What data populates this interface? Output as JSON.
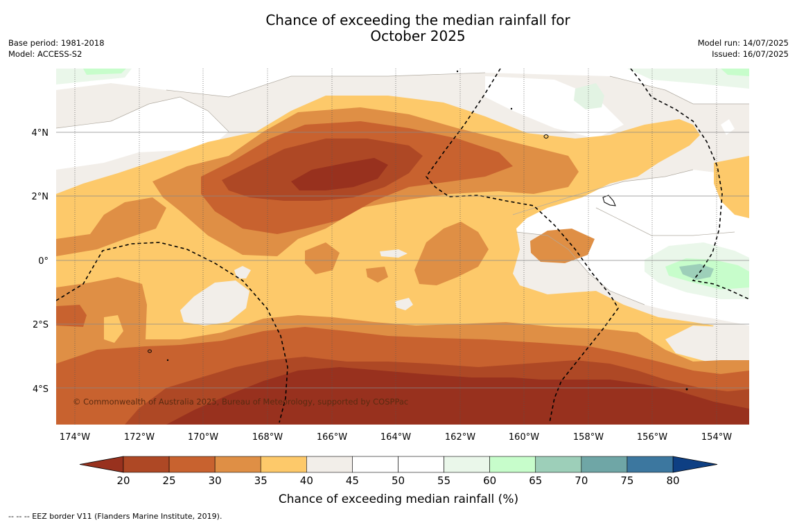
{
  "title_line1": "Chance of exceeding the median rainfall for",
  "title_line2": "October 2025",
  "base_period": "Base period: 1981-2018",
  "model": "Model: ACCESS-S2",
  "model_run": "Model run: 14/07/2025",
  "issued": "Issued: 16/07/2025",
  "copyright": "© Commonwealth of Australia 2025, Bureau of Meteorology, supported by COSPPac",
  "lon_labels": [
    "174°W",
    "172°W",
    "170°W",
    "168°W",
    "166°W",
    "164°W",
    "162°W",
    "160°W",
    "158°W",
    "156°W",
    "154°W"
  ],
  "lat_labels": [
    "4°N",
    "2°N",
    "0°",
    "2°S",
    "4°S"
  ],
  "colorbar": {
    "ticks": [
      "20",
      "25",
      "30",
      "35",
      "40",
      "45",
      "50",
      "55",
      "60",
      "65",
      "70",
      "75",
      "80"
    ],
    "colors": [
      "#ae4825",
      "#c8622f",
      "#df8f45",
      "#fdc96a",
      "#f2eee9",
      "#ffffff",
      "#ffffff",
      "#eaf7ea",
      "#c7fdcb",
      "#9dcfb9",
      "#6fa6a6",
      "#3c779f"
    ],
    "under_color": "#98311e",
    "over_color": "#0e3f83",
    "label": "Chance of exceeding median rainfall (%)"
  },
  "footer": "--  --  -- EEZ border V11 (Flanders Marine Institute, 2019)."
}
